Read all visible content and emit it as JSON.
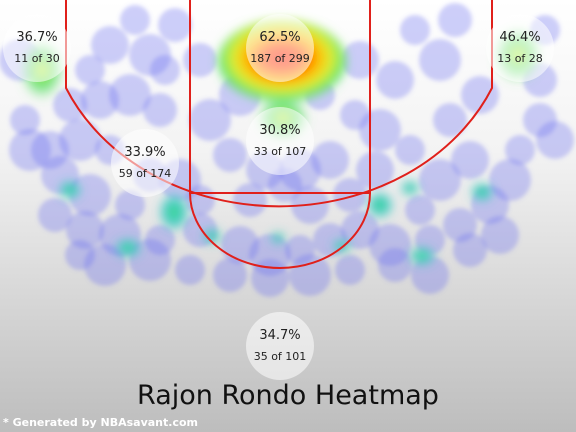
{
  "chart_data": {
    "type": "heatmap",
    "title": "Rajon Rondo Heatmap",
    "credit": "* Generated by NBAsavant.com",
    "zones": [
      {
        "id": "left-corner-three",
        "pct": "36.7%",
        "made_att": "11 of 30",
        "made": 11,
        "attempts": 30
      },
      {
        "id": "restricted-area",
        "pct": "62.5%",
        "made_att": "187 of 299",
        "made": 187,
        "attempts": 299
      },
      {
        "id": "right-corner-three",
        "pct": "46.4%",
        "made_att": "13 of 28",
        "made": 13,
        "attempts": 28
      },
      {
        "id": "left-midrange",
        "pct": "33.9%",
        "made_att": "59 of 174",
        "made": 59,
        "attempts": 174
      },
      {
        "id": "paint",
        "pct": "30.8%",
        "made_att": "33 of 107",
        "made": 33,
        "attempts": 107
      },
      {
        "id": "above-break-three",
        "pct": "34.7%",
        "made_att": "35 of 101",
        "made": 35,
        "attempts": 101
      }
    ],
    "colors": {
      "court_lines": "#e0201b",
      "heat_low": "#6f6ff0",
      "heat_mid": "#3fd86a",
      "heat_high": "#ff1a00"
    }
  }
}
